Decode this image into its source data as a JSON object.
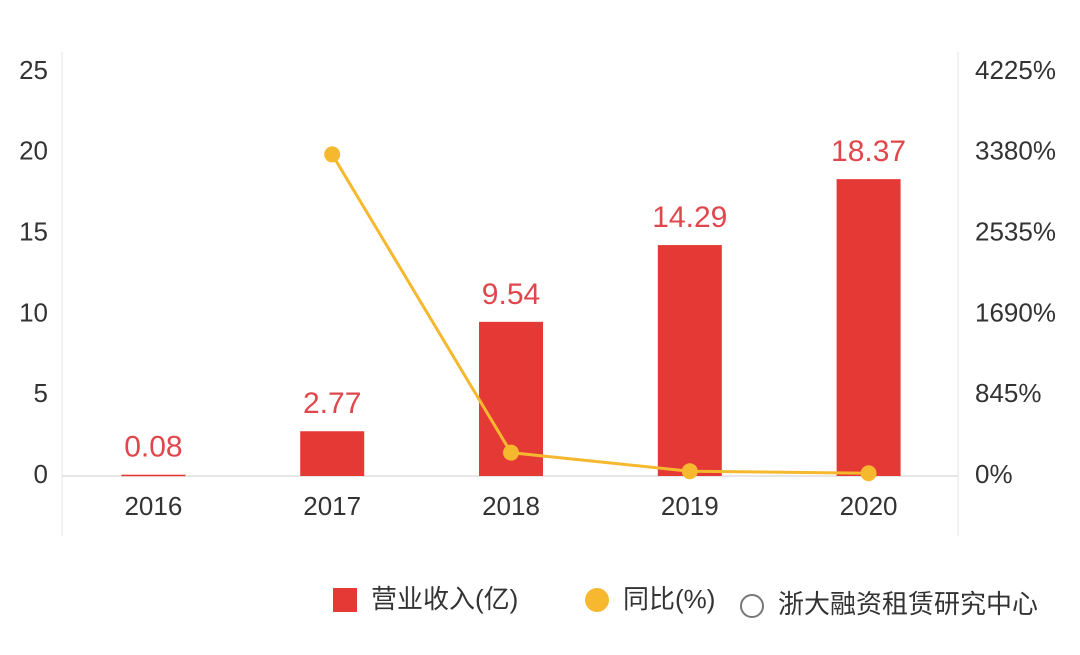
{
  "chart_data": {
    "type": "bar-line",
    "categories": [
      "2016",
      "2017",
      "2018",
      "2019",
      "2020"
    ],
    "series": [
      {
        "name": "营业收入(亿)",
        "type": "bar",
        "color": "#e53935",
        "values": [
          0.08,
          2.77,
          9.54,
          14.29,
          18.37
        ]
      },
      {
        "name": "同比(%)",
        "type": "line",
        "axis": "y2",
        "color": "#f5b82e",
        "values": [
          null,
          3363,
          244,
          50,
          29
        ]
      }
    ],
    "ylim": [
      0,
      25
    ],
    "yticks": [
      0,
      5,
      10,
      15,
      20,
      25
    ],
    "y2lim": [
      0,
      4225
    ],
    "y2ticks": [
      {
        "value": 0,
        "label": "0%"
      },
      {
        "value": 845,
        "label": "845%"
      },
      {
        "value": 1690,
        "label": "1690%"
      },
      {
        "value": 2535,
        "label": "2535%"
      },
      {
        "value": 3380,
        "label": "3380%"
      },
      {
        "value": 4225,
        "label": "4225%"
      }
    ],
    "grid": false,
    "legend": "bottom",
    "watermark": "浙大融资租赁研究中心"
  }
}
